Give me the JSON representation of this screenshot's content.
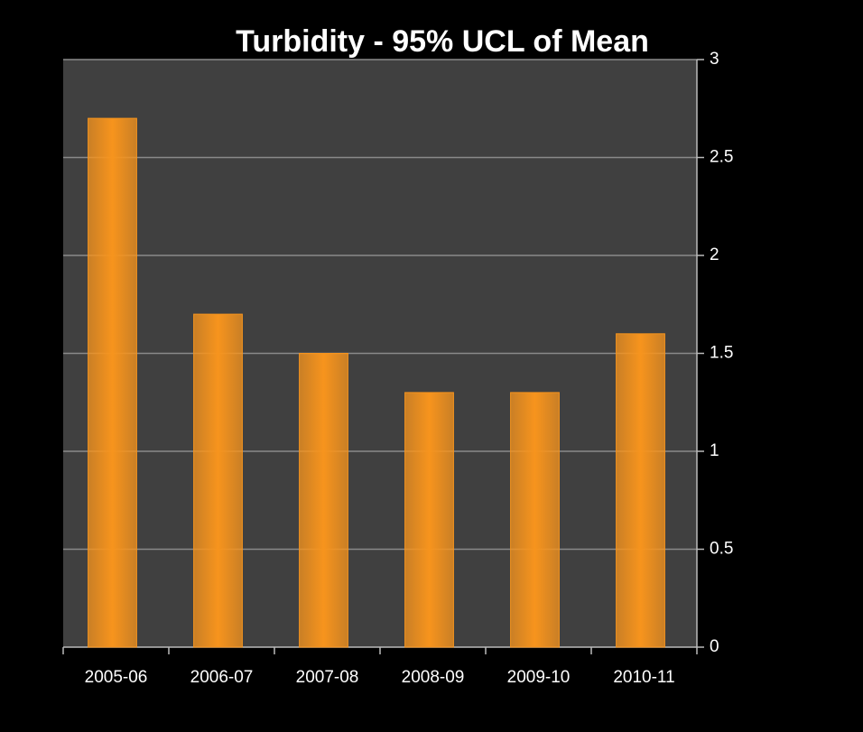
{
  "chart_data": {
    "type": "bar",
    "title": "Turbidity - 95% UCL of Mean",
    "categories": [
      "2005-06",
      "2006-07",
      "2007-08",
      "2008-09",
      "2009-10",
      "2010-11"
    ],
    "values": [
      2.7,
      1.7,
      1.5,
      1.3,
      1.3,
      1.6
    ],
    "color": "#f7941d",
    "ylim": [
      0,
      3
    ],
    "yticks": [
      0,
      0.5,
      1,
      1.5,
      2,
      2.5,
      3
    ],
    "grid": true,
    "y_axis_side": "right"
  }
}
